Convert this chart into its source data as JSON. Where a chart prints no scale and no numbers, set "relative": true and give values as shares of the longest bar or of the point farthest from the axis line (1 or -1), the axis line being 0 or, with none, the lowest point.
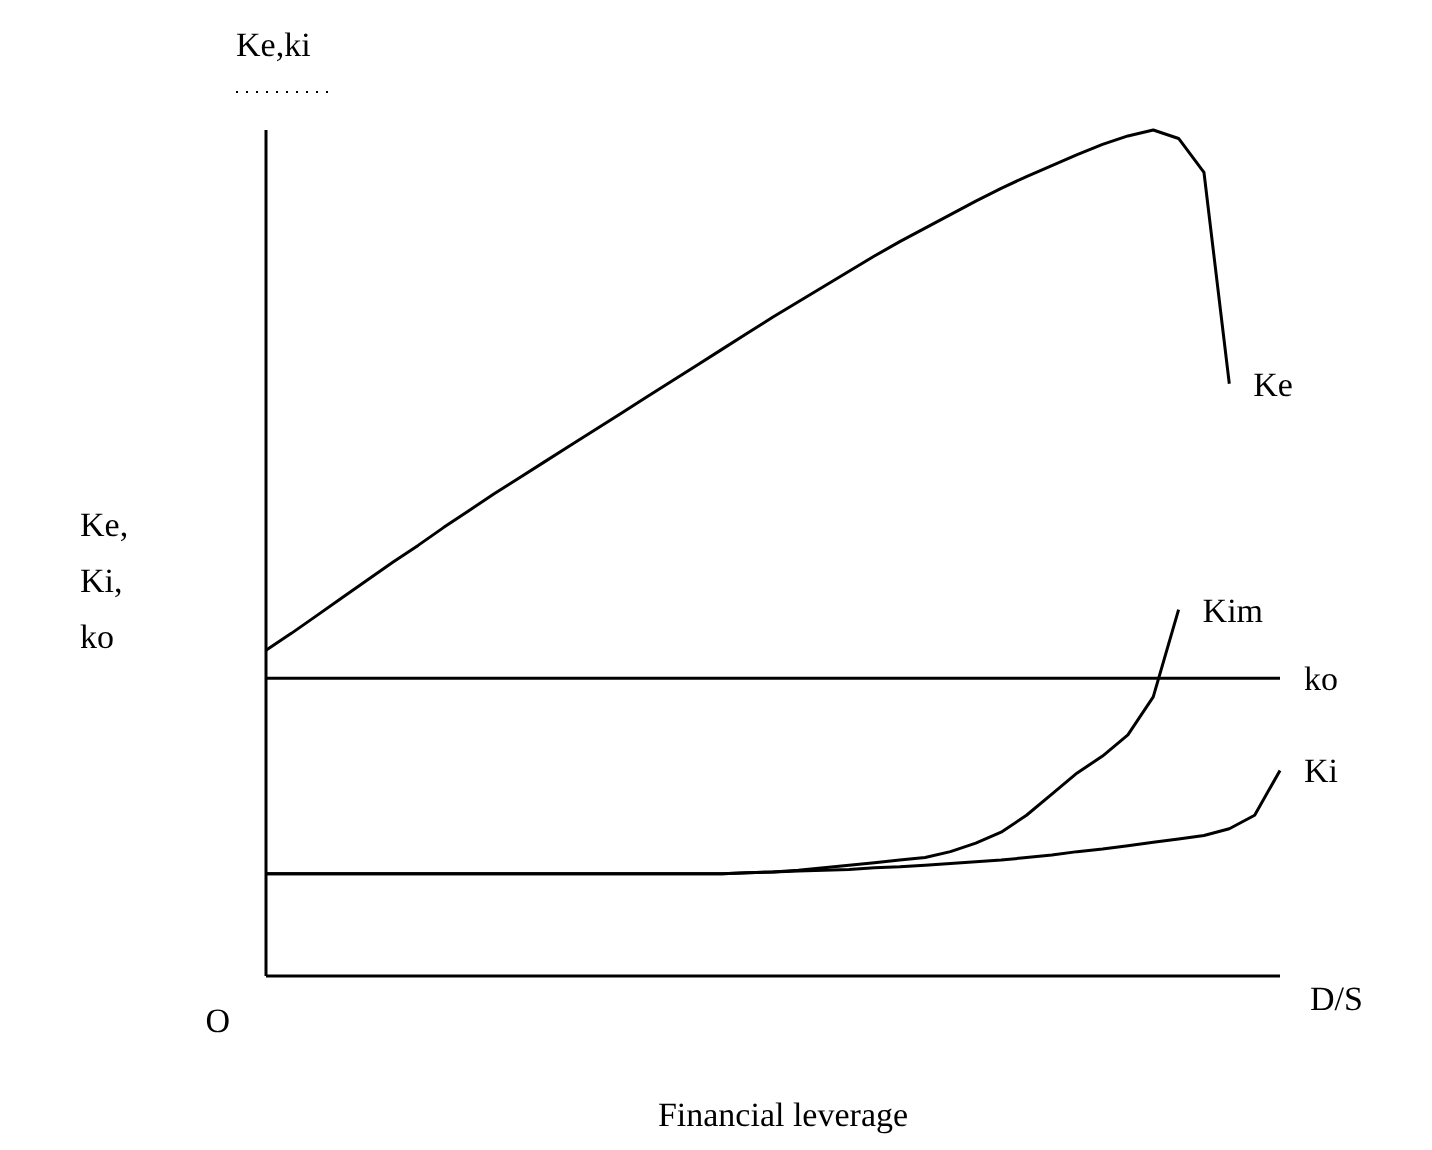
{
  "chart_data": {
    "type": "line",
    "relative": true,
    "xlabel": "Financial leverage",
    "ylabel": "Ke,\nKi,\nko",
    "annotations": [
      "Ke,ki",
      "O",
      "D/S"
    ],
    "legend": false,
    "marker": "none",
    "line_style": "solid",
    "categories": [
      null,
      null,
      null,
      null,
      null,
      null,
      null,
      null,
      null,
      null,
      null,
      null,
      null,
      null,
      null,
      null,
      null,
      null,
      null,
      null,
      null,
      null,
      null,
      null,
      null,
      null,
      null,
      null,
      null,
      null,
      null,
      null,
      null,
      null,
      null,
      null,
      null,
      null,
      null,
      null,
      null
    ],
    "series": [
      {
        "name": "Ke",
        "color": "#000000",
        "values": [
          0.385,
          0.405,
          0.426,
          0.447,
          0.468,
          0.489,
          0.509,
          0.53,
          0.55,
          0.57,
          0.589,
          0.608,
          0.627,
          0.646,
          0.665,
          0.684,
          0.703,
          0.722,
          0.741,
          0.76,
          0.779,
          0.797,
          0.815,
          0.833,
          0.851,
          0.868,
          0.884,
          0.9,
          0.916,
          0.931,
          0.945,
          0.958,
          0.971,
          0.983,
          0.993,
          1,
          0.99,
          0.95,
          0.7,
          null,
          null
        ]
      },
      {
        "name": "Kim",
        "color": "#000000",
        "values": [
          0.121,
          0.121,
          0.121,
          0.121,
          0.121,
          0.121,
          0.121,
          0.121,
          0.121,
          0.121,
          0.121,
          0.121,
          0.121,
          0.121,
          0.121,
          0.121,
          0.121,
          0.121,
          0.121,
          0.122,
          0.123,
          0.125,
          0.128,
          0.131,
          0.134,
          0.137,
          0.14,
          0.147,
          0.157,
          0.17,
          0.19,
          0.215,
          0.24,
          0.26,
          0.285,
          0.33,
          0.433,
          null,
          null,
          null,
          null
        ]
      },
      {
        "name": "ko",
        "color": "#000000",
        "values": [
          0.352,
          0.352,
          0.352,
          0.352,
          0.352,
          0.352,
          0.352,
          0.352,
          0.352,
          0.352,
          0.352,
          0.352,
          0.352,
          0.352,
          0.352,
          0.352,
          0.352,
          0.352,
          0.352,
          0.352,
          0.352,
          0.352,
          0.352,
          0.352,
          0.352,
          0.352,
          0.352,
          0.352,
          0.352,
          0.352,
          0.352,
          0.352,
          0.352,
          0.352,
          0.352,
          0.352,
          0.352,
          0.352,
          0.352,
          0.352,
          0.352
        ]
      },
      {
        "name": "Ki",
        "color": "#000000",
        "values": [
          0.121,
          0.121,
          0.121,
          0.121,
          0.121,
          0.121,
          0.121,
          0.121,
          0.121,
          0.121,
          0.121,
          0.121,
          0.121,
          0.121,
          0.121,
          0.121,
          0.121,
          0.121,
          0.121,
          0.122,
          0.123,
          0.124,
          0.125,
          0.126,
          0.128,
          0.129,
          0.131,
          0.133,
          0.135,
          0.137,
          0.14,
          0.143,
          0.147,
          0.15,
          0.154,
          0.158,
          0.162,
          0.166,
          0.174,
          0.19,
          0.243
        ]
      }
    ]
  }
}
